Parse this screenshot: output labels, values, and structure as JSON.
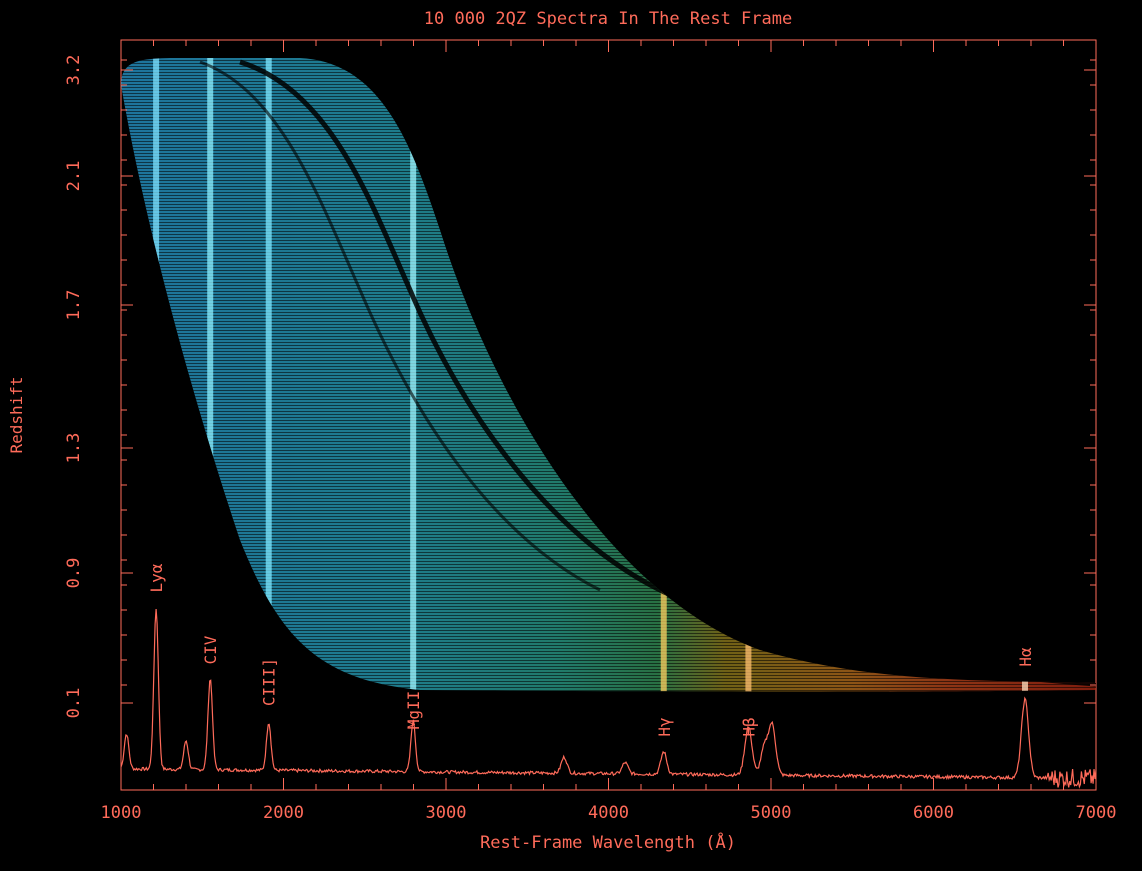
{
  "colors": {
    "axis": "#ff6b5a",
    "background": "#000000",
    "band_blue": "#33b8f0",
    "band_green": "#3fc08a",
    "band_gold": "#e0a020",
    "band_red": "#e04020"
  },
  "chart_data": {
    "type": "heatmap",
    "title": "10 000 2QZ Spectra In The Rest Frame",
    "xlabel": "Rest-Frame Wavelength (Å)",
    "ylabel": "Redshift",
    "xlim": [
      1000,
      7000
    ],
    "x_ticks": [
      {
        "value": 1000,
        "label": "1000"
      },
      {
        "value": 2000,
        "label": "2000"
      },
      {
        "value": 3000,
        "label": "3000"
      },
      {
        "value": 4000,
        "label": "4000"
      },
      {
        "value": 5000,
        "label": "5000"
      },
      {
        "value": 6000,
        "label": "6000"
      },
      {
        "value": 7000,
        "label": "7000"
      }
    ],
    "y_ticks": [
      {
        "value": 0.1,
        "label": "0.1"
      },
      {
        "value": 0.9,
        "label": "0.9"
      },
      {
        "value": 1.3,
        "label": "1.3"
      },
      {
        "value": 1.7,
        "label": "1.7"
      },
      {
        "value": 2.1,
        "label": "2.1"
      },
      {
        "value": 3.2,
        "label": "3.2"
      }
    ],
    "emission_lines": [
      {
        "label": "Lyα",
        "wavelength": 1216
      },
      {
        "label": "CIV",
        "wavelength": 1549
      },
      {
        "label": "CIII]",
        "wavelength": 1909
      },
      {
        "label": "MgII",
        "wavelength": 2798
      },
      {
        "label": "Hγ",
        "wavelength": 4340
      },
      {
        "label": "Hβ",
        "wavelength": 4861
      },
      {
        "label": "Hα",
        "wavelength": 6563
      }
    ],
    "composite_spectrum": {
      "continuum": 0.12,
      "peaks": [
        {
          "wavelength": 1034,
          "height": 0.22
        },
        {
          "wavelength": 1216,
          "height": 1.0
        },
        {
          "wavelength": 1400,
          "height": 0.18
        },
        {
          "wavelength": 1549,
          "height": 0.57
        },
        {
          "wavelength": 1909,
          "height": 0.3
        },
        {
          "wavelength": 2798,
          "height": 0.32
        },
        {
          "wavelength": 3727,
          "height": 0.1
        },
        {
          "wavelength": 4102,
          "height": 0.07
        },
        {
          "wavelength": 4340,
          "height": 0.14
        },
        {
          "wavelength": 4861,
          "height": 0.3
        },
        {
          "wavelength": 4959,
          "height": 0.17
        },
        {
          "wavelength": 5007,
          "height": 0.31
        },
        {
          "wavelength": 6563,
          "height": 0.49
        }
      ]
    }
  }
}
